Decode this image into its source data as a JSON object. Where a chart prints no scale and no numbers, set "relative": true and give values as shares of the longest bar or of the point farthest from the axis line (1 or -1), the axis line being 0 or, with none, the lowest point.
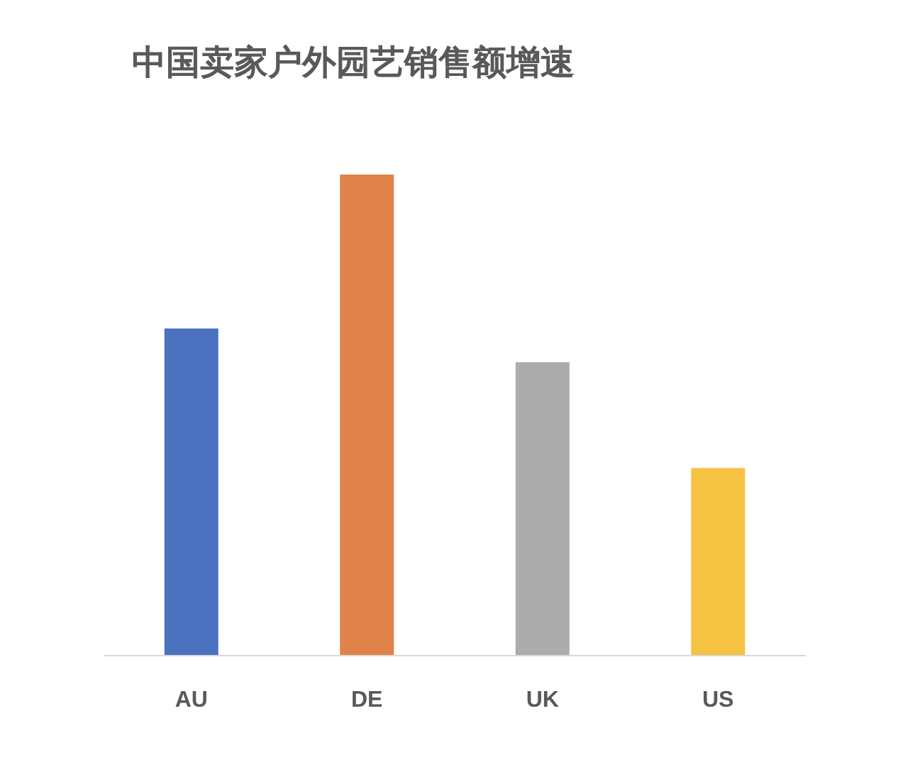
{
  "chart_data": {
    "type": "bar",
    "title": "中国卖家户外园艺销售额增速",
    "categories": [
      "AU",
      "DE",
      "UK",
      "US"
    ],
    "values": [
      0.68,
      1,
      0.61,
      0.39
    ],
    "colors": [
      "#4a72be",
      "#e0834a",
      "#acacac",
      "#f5c242"
    ],
    "relative": true
  }
}
